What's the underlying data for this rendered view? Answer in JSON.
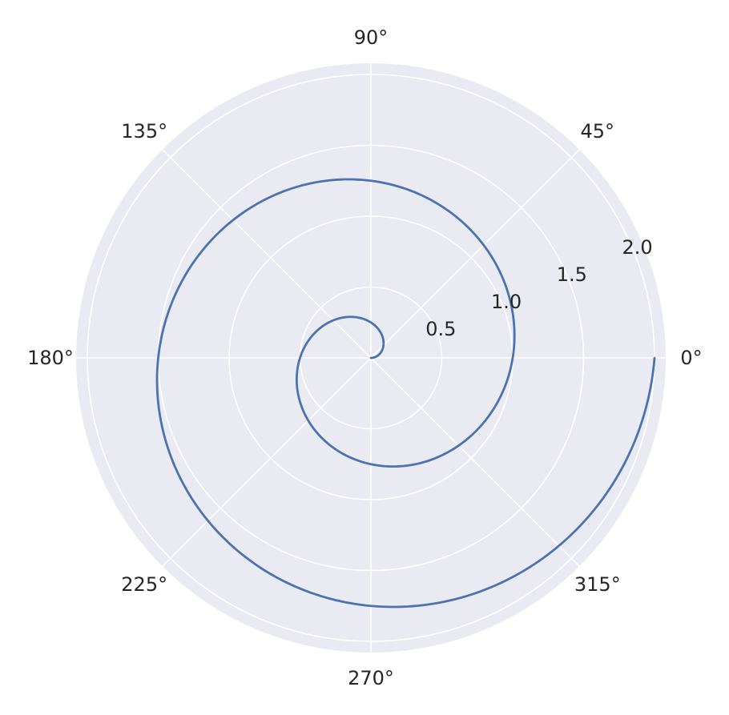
{
  "chart_data": {
    "type": "line",
    "projection": "polar",
    "title": "",
    "angular_ticks": [
      {
        "deg": 0,
        "label": "0°"
      },
      {
        "deg": 45,
        "label": "45°"
      },
      {
        "deg": 90,
        "label": "90°"
      },
      {
        "deg": 135,
        "label": "135°"
      },
      {
        "deg": 180,
        "label": "180°"
      },
      {
        "deg": 225,
        "label": "225°"
      },
      {
        "deg": 270,
        "label": "270°"
      },
      {
        "deg": 315,
        "label": "315°"
      }
    ],
    "radial_ticks": [
      {
        "value": 0.5,
        "label": "0.5"
      },
      {
        "value": 1.0,
        "label": "1.0"
      },
      {
        "value": 1.5,
        "label": "1.5"
      },
      {
        "value": 2.0,
        "label": "2.0"
      }
    ],
    "rlim": [
      0,
      2.0
    ],
    "grid": true,
    "background_color": "#eaeaf2",
    "series": [
      {
        "color": "#4c72b0",
        "curve": "archimedean spiral r = theta / (2*pi)",
        "theta_range": [
          0,
          12.566
        ],
        "r_range": [
          0,
          2.0
        ]
      }
    ]
  }
}
